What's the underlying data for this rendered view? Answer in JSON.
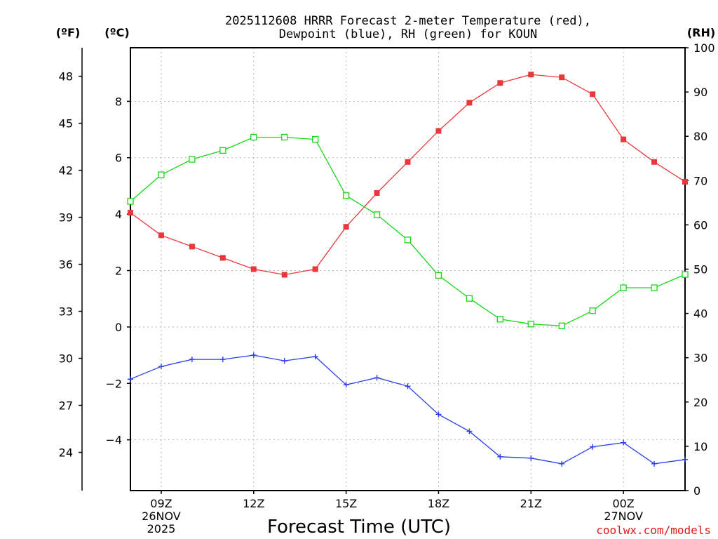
{
  "chart_data": {
    "type": "line",
    "title": "2025112608 HRRR Forecast 2-meter Temperature (red),",
    "subtitle": "Dewpoint (blue), RH (green) for KOUN",
    "xlabel": "Forecast Time (UTC)",
    "credit": "coolwx.com/models",
    "units": {
      "fahrenheit": "(ºF)",
      "celsius": "(ºC)",
      "rh": "(RH)"
    },
    "x_hours": [
      8,
      9,
      10,
      11,
      12,
      13,
      14,
      15,
      16,
      17,
      18,
      19,
      20,
      21,
      22,
      23,
      24,
      25,
      26
    ],
    "x_range": [
      8,
      26
    ],
    "x_ticks": [
      {
        "hour": 9,
        "lines": [
          "09Z",
          "26NOV",
          "2025"
        ]
      },
      {
        "hour": 12,
        "lines": [
          "12Z"
        ]
      },
      {
        "hour": 15,
        "lines": [
          "15Z"
        ]
      },
      {
        "hour": 18,
        "lines": [
          "18Z"
        ]
      },
      {
        "hour": 21,
        "lines": [
          "21Z"
        ]
      },
      {
        "hour": 24,
        "lines": [
          "00Z",
          "27NOV"
        ]
      }
    ],
    "celsius_range": [
      -5.8,
      9.9
    ],
    "celsius_ticks": [
      "-4",
      "-2",
      "0",
      "2",
      "4",
      "6",
      "8"
    ],
    "fahrenheit_ticks": [
      "24",
      "27",
      "30",
      "33",
      "36",
      "39",
      "42",
      "45",
      "48"
    ],
    "rh_range": [
      0,
      100
    ],
    "rh_ticks": [
      "0",
      "10",
      "20",
      "30",
      "40",
      "50",
      "60",
      "70",
      "80",
      "90",
      "100"
    ],
    "series": [
      {
        "name": "2-meter Temperature",
        "axis": "celsius",
        "color": "#e8383c",
        "marker": "filled-square",
        "values": [
          4.05,
          3.25,
          2.85,
          2.45,
          2.05,
          1.85,
          2.05,
          3.55,
          4.75,
          5.85,
          6.95,
          7.95,
          8.65,
          8.95,
          8.85,
          8.25,
          6.65,
          5.85,
          5.15
        ]
      },
      {
        "name": "Dewpoint",
        "axis": "celsius",
        "color": "#2a3ee8",
        "marker": "plus",
        "values": [
          -1.85,
          -1.4,
          -1.15,
          -1.15,
          -1.0,
          -1.2,
          -1.05,
          -2.05,
          -1.8,
          -2.1,
          -3.1,
          -3.7,
          -4.6,
          -4.65,
          -4.85,
          -4.25,
          -4.1,
          -4.85,
          -4.7
        ]
      },
      {
        "name": "RH",
        "axis": "rh",
        "color": "#19d619",
        "marker": "open-square",
        "values": [
          65.3,
          71.3,
          74.8,
          76.8,
          79.8,
          79.8,
          79.3,
          66.6,
          62.3,
          56.6,
          48.6,
          43.4,
          38.7,
          37.6,
          37.2,
          40.6,
          45.8,
          45.8,
          48.8
        ]
      }
    ],
    "grid": true
  }
}
